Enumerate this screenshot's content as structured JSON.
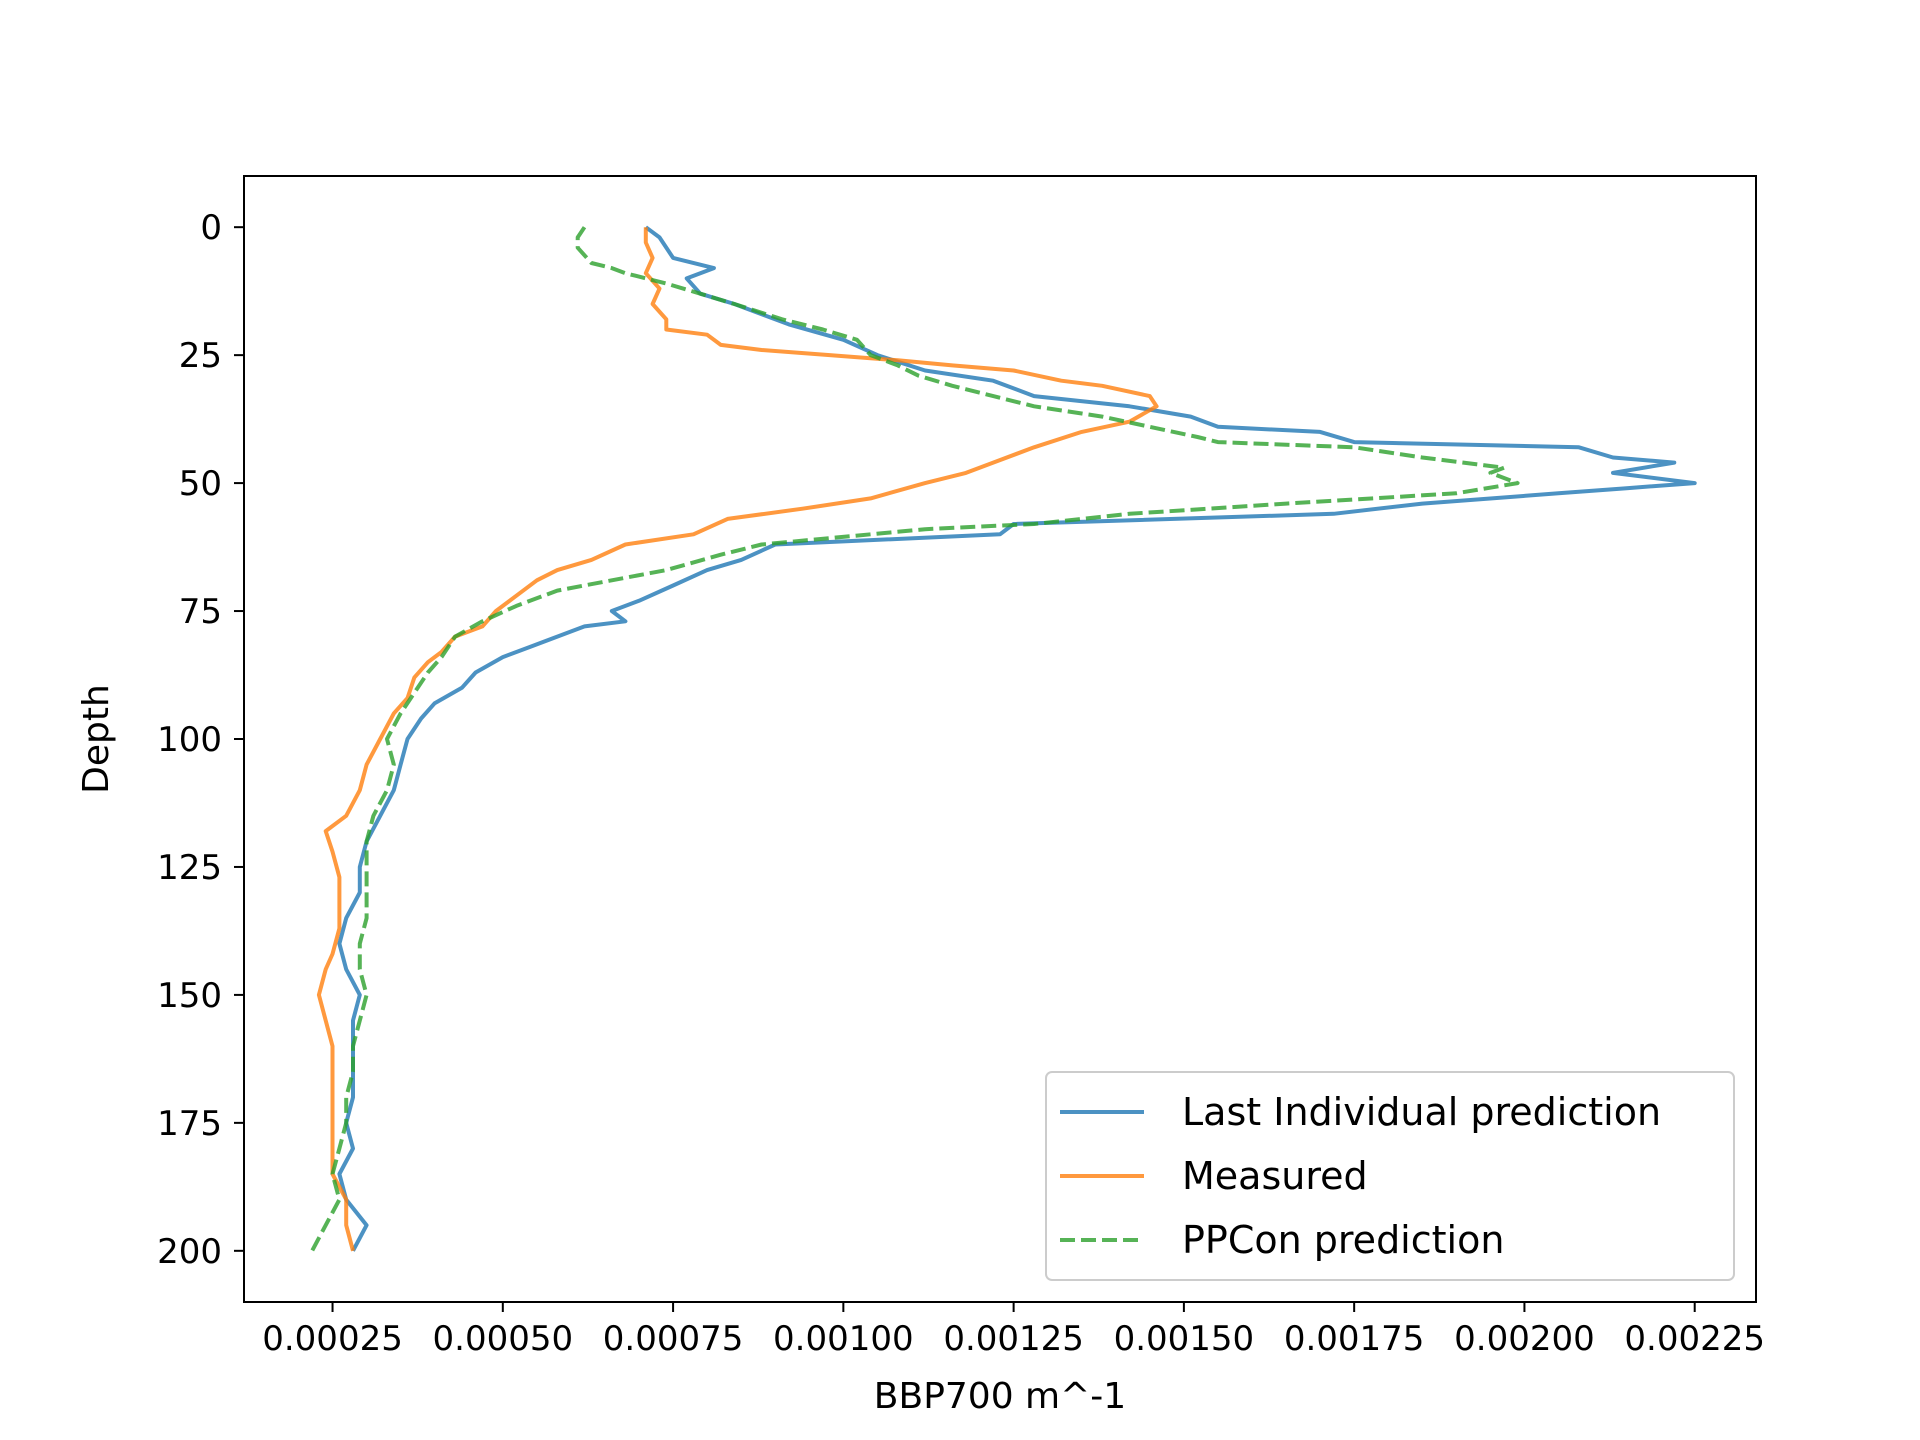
{
  "chart_data": {
    "type": "line",
    "title": "",
    "xlabel": "BBP700 m^-1",
    "ylabel": "Depth",
    "xlim": [
      0.00012,
      0.00234
    ],
    "ylim": [
      210,
      -10
    ],
    "y_inverted": true,
    "grid": false,
    "legend_position": "lower right",
    "xticks": [
      0.00025,
      0.0005,
      0.00075,
      0.001,
      0.00125,
      0.0015,
      0.00175,
      0.002,
      0.00225
    ],
    "xtick_labels": [
      "0.00025",
      "0.00050",
      "0.00075",
      "0.00100",
      "0.00125",
      "0.00150",
      "0.00175",
      "0.00200",
      "0.00225"
    ],
    "yticks": [
      0,
      25,
      50,
      75,
      100,
      125,
      150,
      175,
      200
    ],
    "ytick_labels": [
      "0",
      "25",
      "50",
      "75",
      "100",
      "125",
      "150",
      "175",
      "200"
    ],
    "series": [
      {
        "name": "Last Individual prediction",
        "color": "#1f77b4",
        "dash": "solid",
        "points": [
          [
            0.00071,
            0
          ],
          [
            0.00073,
            2
          ],
          [
            0.00075,
            6
          ],
          [
            0.00081,
            8
          ],
          [
            0.00077,
            10
          ],
          [
            0.00079,
            13
          ],
          [
            0.00084,
            15
          ],
          [
            0.00092,
            19
          ],
          [
            0.001,
            22
          ],
          [
            0.00105,
            25
          ],
          [
            0.00112,
            28
          ],
          [
            0.00122,
            30
          ],
          [
            0.00128,
            33
          ],
          [
            0.00142,
            35
          ],
          [
            0.00151,
            37
          ],
          [
            0.00155,
            39
          ],
          [
            0.0017,
            40
          ],
          [
            0.00175,
            42
          ],
          [
            0.00208,
            43
          ],
          [
            0.00213,
            45
          ],
          [
            0.00222,
            46
          ],
          [
            0.00213,
            48
          ],
          [
            0.00225,
            50
          ],
          [
            0.00215,
            51
          ],
          [
            0.00205,
            52
          ],
          [
            0.00185,
            54
          ],
          [
            0.00172,
            56
          ],
          [
            0.00125,
            58
          ],
          [
            0.00123,
            60
          ],
          [
            0.0009,
            62
          ],
          [
            0.00085,
            65
          ],
          [
            0.0008,
            67
          ],
          [
            0.00075,
            70
          ],
          [
            0.0007,
            73
          ],
          [
            0.00066,
            75
          ],
          [
            0.00068,
            77
          ],
          [
            0.00062,
            78
          ],
          [
            0.00058,
            80
          ],
          [
            0.00054,
            82
          ],
          [
            0.0005,
            84
          ],
          [
            0.00046,
            87
          ],
          [
            0.00044,
            90
          ],
          [
            0.0004,
            93
          ],
          [
            0.00038,
            96
          ],
          [
            0.00036,
            100
          ],
          [
            0.00035,
            105
          ],
          [
            0.00034,
            110
          ],
          [
            0.00032,
            115
          ],
          [
            0.0003,
            120
          ],
          [
            0.00029,
            125
          ],
          [
            0.00029,
            130
          ],
          [
            0.00027,
            135
          ],
          [
            0.00026,
            140
          ],
          [
            0.00027,
            145
          ],
          [
            0.00029,
            150
          ],
          [
            0.00028,
            155
          ],
          [
            0.00028,
            160
          ],
          [
            0.00028,
            165
          ],
          [
            0.00028,
            170
          ],
          [
            0.00027,
            175
          ],
          [
            0.00028,
            180
          ],
          [
            0.00026,
            185
          ],
          [
            0.00027,
            190
          ],
          [
            0.0003,
            195
          ],
          [
            0.00028,
            200
          ]
        ]
      },
      {
        "name": "Measured",
        "color": "#ff7f0e",
        "dash": "solid",
        "points": [
          [
            0.00071,
            0
          ],
          [
            0.00071,
            3
          ],
          [
            0.00072,
            6
          ],
          [
            0.00071,
            9
          ],
          [
            0.00073,
            12
          ],
          [
            0.00072,
            15
          ],
          [
            0.00074,
            18
          ],
          [
            0.00074,
            20
          ],
          [
            0.0008,
            21
          ],
          [
            0.00082,
            23
          ],
          [
            0.00088,
            24
          ],
          [
            0.00098,
            25
          ],
          [
            0.00108,
            26
          ],
          [
            0.00116,
            27
          ],
          [
            0.00125,
            28
          ],
          [
            0.00132,
            30
          ],
          [
            0.00138,
            31
          ],
          [
            0.00145,
            33
          ],
          [
            0.00146,
            35
          ],
          [
            0.00142,
            38
          ],
          [
            0.00135,
            40
          ],
          [
            0.00128,
            43
          ],
          [
            0.00122,
            46
          ],
          [
            0.00118,
            48
          ],
          [
            0.00112,
            50
          ],
          [
            0.00104,
            53
          ],
          [
            0.00094,
            55
          ],
          [
            0.00083,
            57
          ],
          [
            0.00078,
            60
          ],
          [
            0.00068,
            62
          ],
          [
            0.00063,
            65
          ],
          [
            0.00058,
            67
          ],
          [
            0.00055,
            69
          ],
          [
            0.00052,
            72
          ],
          [
            0.00049,
            75
          ],
          [
            0.00047,
            78
          ],
          [
            0.00043,
            80
          ],
          [
            0.00041,
            83
          ],
          [
            0.00039,
            85
          ],
          [
            0.00037,
            88
          ],
          [
            0.00036,
            92
          ],
          [
            0.00034,
            95
          ],
          [
            0.00032,
            100
          ],
          [
            0.0003,
            105
          ],
          [
            0.00029,
            110
          ],
          [
            0.00027,
            115
          ],
          [
            0.00024,
            118
          ],
          [
            0.00025,
            122
          ],
          [
            0.00026,
            127
          ],
          [
            0.00026,
            132
          ],
          [
            0.00026,
            137
          ],
          [
            0.00025,
            142
          ],
          [
            0.00024,
            145
          ],
          [
            0.00023,
            150
          ],
          [
            0.00024,
            155
          ],
          [
            0.00025,
            160
          ],
          [
            0.00025,
            165
          ],
          [
            0.00025,
            170
          ],
          [
            0.00025,
            175
          ],
          [
            0.00025,
            180
          ],
          [
            0.00025,
            185
          ],
          [
            0.00027,
            190
          ],
          [
            0.00027,
            195
          ],
          [
            0.00028,
            200
          ]
        ]
      },
      {
        "name": "PPCon prediction",
        "color": "#2ca02c",
        "dash": "dashed",
        "points": [
          [
            0.00062,
            0
          ],
          [
            0.00061,
            2
          ],
          [
            0.00061,
            4
          ],
          [
            0.00063,
            7
          ],
          [
            0.00066,
            8
          ],
          [
            0.00068,
            9
          ],
          [
            0.00074,
            11
          ],
          [
            0.00079,
            13
          ],
          [
            0.00084,
            15
          ],
          [
            0.00091,
            18
          ],
          [
            0.00097,
            20
          ],
          [
            0.00102,
            22
          ],
          [
            0.00104,
            25
          ],
          [
            0.00108,
            27
          ],
          [
            0.00111,
            29
          ],
          [
            0.00116,
            31
          ],
          [
            0.00122,
            33
          ],
          [
            0.00128,
            35
          ],
          [
            0.00138,
            37
          ],
          [
            0.00145,
            39
          ],
          [
            0.00152,
            41
          ],
          [
            0.00155,
            42
          ],
          [
            0.00175,
            43
          ],
          [
            0.00185,
            45
          ],
          [
            0.00197,
            47
          ],
          [
            0.00195,
            48
          ],
          [
            0.00199,
            50
          ],
          [
            0.0019,
            52
          ],
          [
            0.00165,
            54
          ],
          [
            0.00142,
            56
          ],
          [
            0.00128,
            58
          ],
          [
            0.00112,
            59
          ],
          [
            0.00088,
            62
          ],
          [
            0.00082,
            64
          ],
          [
            0.00074,
            67
          ],
          [
            0.00066,
            69
          ],
          [
            0.00058,
            71
          ],
          [
            0.00052,
            74
          ],
          [
            0.00047,
            77
          ],
          [
            0.00043,
            80
          ],
          [
            0.00041,
            84
          ],
          [
            0.00039,
            87
          ],
          [
            0.00037,
            91
          ],
          [
            0.00035,
            95
          ],
          [
            0.00033,
            100
          ],
          [
            0.00034,
            105
          ],
          [
            0.00033,
            110
          ],
          [
            0.00031,
            115
          ],
          [
            0.0003,
            120
          ],
          [
            0.0003,
            125
          ],
          [
            0.0003,
            130
          ],
          [
            0.0003,
            135
          ],
          [
            0.00029,
            140
          ],
          [
            0.00029,
            145
          ],
          [
            0.0003,
            150
          ],
          [
            0.00029,
            155
          ],
          [
            0.00028,
            160
          ],
          [
            0.00028,
            165
          ],
          [
            0.00027,
            170
          ],
          [
            0.00027,
            175
          ],
          [
            0.00026,
            180
          ],
          [
            0.00025,
            185
          ],
          [
            0.00026,
            190
          ],
          [
            0.00024,
            195
          ],
          [
            0.00022,
            200
          ]
        ]
      }
    ]
  }
}
